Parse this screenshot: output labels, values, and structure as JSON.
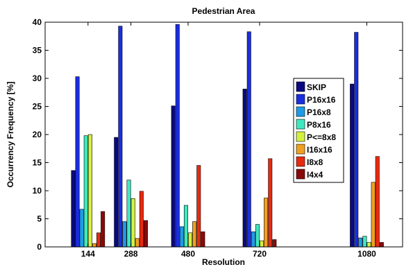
{
  "chart_data": {
    "type": "bar",
    "title": "Pedestrian Area",
    "xlabel": "Resolution",
    "ylabel": "Occurrency Frequency [%]",
    "xlim": [
      0,
      1200
    ],
    "ylim": [
      0,
      40
    ],
    "xticks": [
      144,
      288,
      480,
      720,
      1080
    ],
    "yticks": [
      0,
      5,
      10,
      15,
      20,
      25,
      30,
      35,
      40
    ],
    "categories": [
      "144",
      "288",
      "480",
      "720",
      "1080"
    ],
    "grid": false,
    "legend_position": "right",
    "series": [
      {
        "name": "SKIP",
        "color": "#0a0a80",
        "values": [
          13.6,
          19.5,
          25.1,
          28.1,
          29.0
        ]
      },
      {
        "name": "P16x16",
        "color": "#1a2ee0",
        "values": [
          30.3,
          39.3,
          39.6,
          38.3,
          38.2
        ]
      },
      {
        "name": "P16x8",
        "color": "#1e9be6",
        "values": [
          6.7,
          4.5,
          3.6,
          2.7,
          1.6
        ]
      },
      {
        "name": "P8x16",
        "color": "#40e8c0",
        "values": [
          19.8,
          11.9,
          7.4,
          4.0,
          1.9
        ]
      },
      {
        "name": "P<=8x8",
        "color": "#d4f040",
        "values": [
          20.0,
          8.6,
          2.5,
          1.1,
          0.8
        ]
      },
      {
        "name": "I16x16",
        "color": "#f0a020",
        "values": [
          0.6,
          1.5,
          4.5,
          8.7,
          11.5
        ]
      },
      {
        "name": "I8x8",
        "color": "#e82a10",
        "values": [
          2.5,
          9.9,
          14.5,
          15.7,
          16.1
        ]
      },
      {
        "name": "I4x4",
        "color": "#8a0a0a",
        "values": [
          6.3,
          4.7,
          2.7,
          1.3,
          0.8
        ]
      }
    ]
  }
}
